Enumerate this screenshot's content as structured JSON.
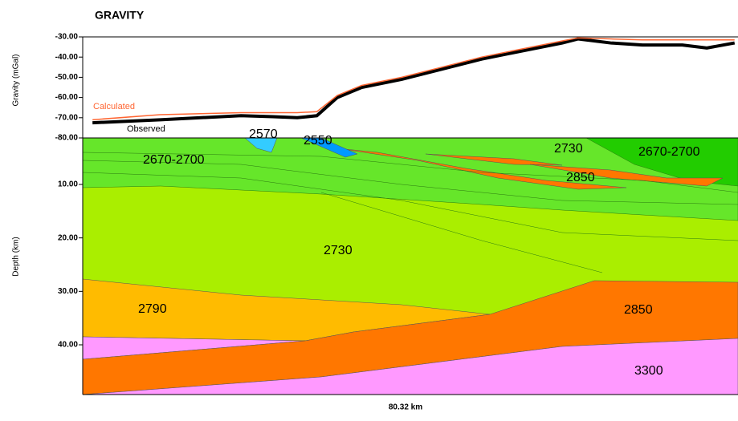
{
  "chart_data": [
    {
      "type": "line",
      "title": "GRAVITY",
      "y_label": "Gravity (mGal)",
      "x": [
        1.2,
        9.5,
        19.4,
        23.3,
        26.3,
        28.7,
        31.2,
        34.2,
        39.1,
        44.0,
        48.9,
        53.8,
        58.8,
        60.7,
        64.7,
        68.6,
        73.5,
        76.5,
        79.9
      ],
      "xlim": [
        0,
        80.32
      ],
      "series": [
        {
          "name": "Calculated",
          "color": "#ff6633",
          "values": [
            -71,
            -68.5,
            -67.5,
            -67.5,
            -67.5,
            -67,
            -59,
            -54,
            -50,
            -45,
            -40,
            -36,
            -32,
            -30.5,
            -31,
            -31.5,
            -31.5,
            -31.5,
            -31.5
          ]
        },
        {
          "name": "Observed",
          "color": "#000000",
          "values": [
            -72.5,
            -71,
            -69,
            -69.5,
            -70,
            -69,
            -60,
            -55,
            -51,
            -46,
            -41,
            -37,
            -33,
            -31,
            -33,
            -34,
            -34,
            -35.5,
            -33
          ]
        }
      ],
      "ylim": [
        -80,
        -30
      ],
      "yticks": [
        {
          "value": -30,
          "label": "-30.00"
        },
        {
          "value": -40,
          "label": "-40.00"
        },
        {
          "value": -50,
          "label": "-50.00"
        },
        {
          "value": -60,
          "label": "-60.00"
        },
        {
          "value": -70,
          "label": "-70.00"
        },
        {
          "value": -80,
          "label": "-80.00"
        }
      ]
    },
    {
      "type": "section",
      "y_label": "Depth (km)",
      "x_label": "80.32 km",
      "ylim": [
        1.3,
        49.3
      ],
      "yticks": [
        {
          "value": 10,
          "label": "10.00"
        },
        {
          "value": 20,
          "label": "20.00"
        },
        {
          "value": 30,
          "label": "30.00"
        },
        {
          "value": 40,
          "label": "40.00"
        }
      ],
      "labels": [
        "2570",
        "2550",
        "2670-2700",
        "2730",
        "2670-2700",
        "2850",
        "2730",
        "2790",
        "2850",
        "3300"
      ]
    }
  ]
}
